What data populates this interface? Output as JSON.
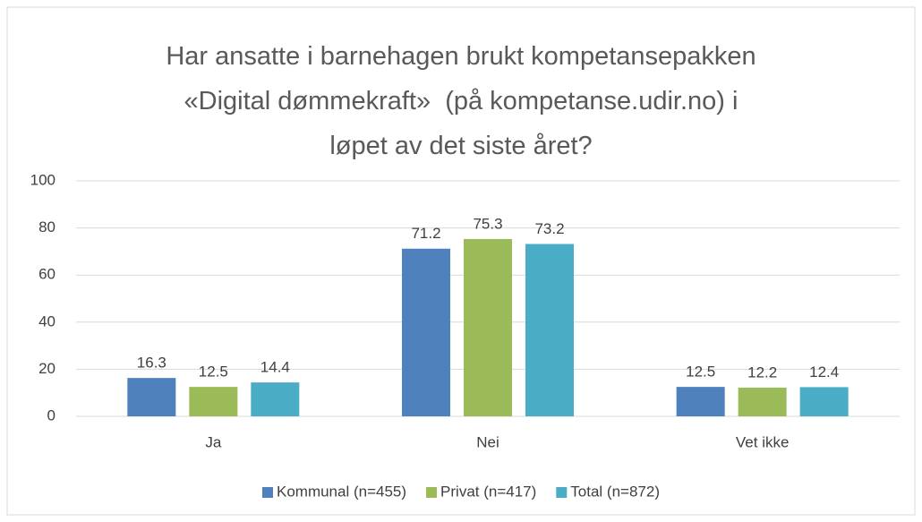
{
  "chart_data": {
    "type": "bar",
    "title": "Har ansatte i barnehagen brukt kompetansepakken\n«Digital dømmekraft»  (på kompetanse.udir.no) i\nløpet av det siste året?",
    "categories": [
      "Ja",
      "Nei",
      "Vet ikke"
    ],
    "series": [
      {
        "name": "Kommunal (n=455)",
        "color": "#4f81bd",
        "values": [
          16.3,
          71.2,
          12.5
        ]
      },
      {
        "name": "Privat (n=417)",
        "color": "#9bbb59",
        "values": [
          12.5,
          75.3,
          12.2
        ]
      },
      {
        "name": "Total (n=872)",
        "color": "#4bacc6",
        "values": [
          14.4,
          73.2,
          12.4
        ]
      }
    ],
    "ylim": [
      0,
      100
    ],
    "yticks": [
      0,
      20,
      40,
      60,
      80,
      100
    ],
    "grid": true,
    "legend": "bottom"
  }
}
